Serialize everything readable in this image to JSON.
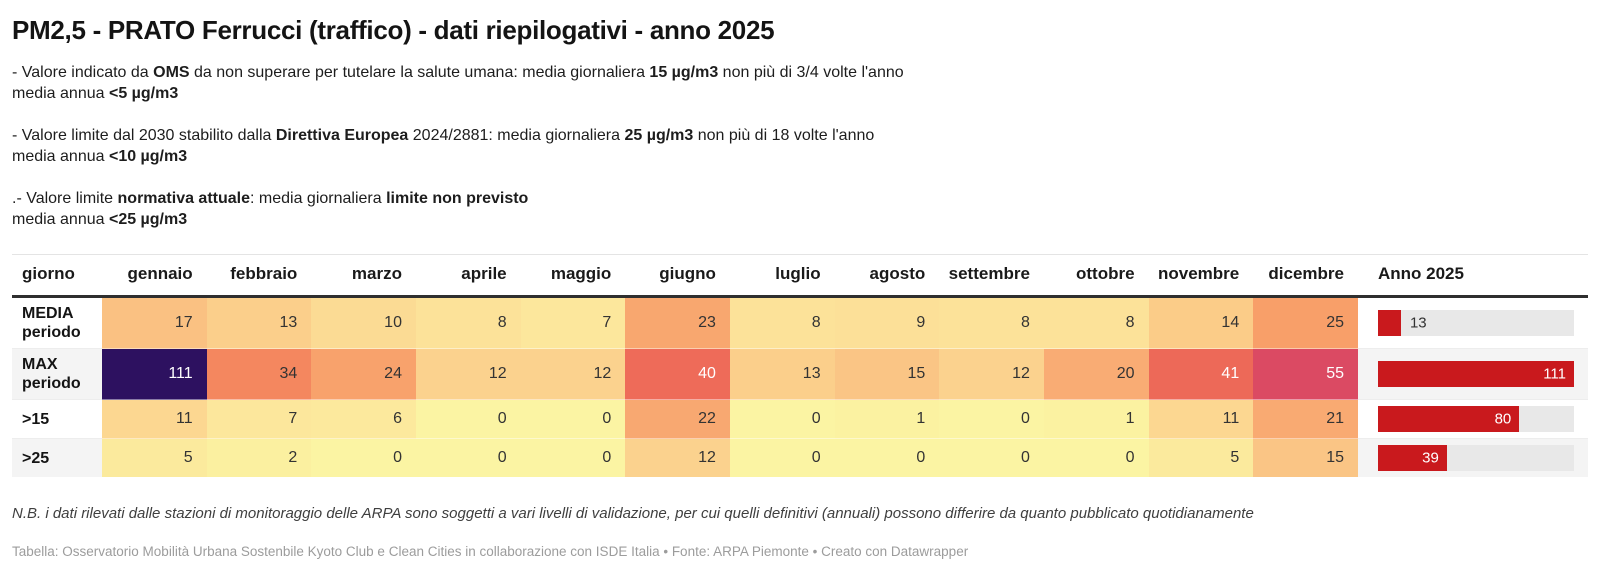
{
  "header": {
    "title": "PM2,5 - PRATO Ferrucci (traffico) - dati riepilogativi - anno 2025"
  },
  "description": [
    {
      "lines": [
        [
          [
            "- Valore indicato da ",
            0
          ],
          [
            "OMS",
            1
          ],
          [
            " da non superare per tutelare la salute umana: media giornaliera ",
            0
          ],
          [
            "15 µg/m3",
            1
          ],
          [
            " non più di 3/4 volte l'anno",
            0
          ]
        ],
        [
          [
            "media annua ",
            0
          ],
          [
            "<5 µg/m3",
            1
          ]
        ]
      ]
    },
    {
      "lines": [
        [
          [
            "- Valore limite dal 2030 stabilito dalla ",
            0
          ],
          [
            "Direttiva Europea",
            1
          ],
          [
            " 2024/2881: media giornaliera ",
            0
          ],
          [
            "25 µg/m3",
            1
          ],
          [
            " non più di 18 volte l'anno",
            0
          ]
        ],
        [
          [
            "media annua ",
            0
          ],
          [
            "<10 µg/m3",
            1
          ]
        ]
      ]
    },
    {
      "lines": [
        [
          [
            ".- Valore limite ",
            0
          ],
          [
            "normativa attuale",
            1
          ],
          [
            ": media giornaliera ",
            0
          ],
          [
            "limite non previsto",
            1
          ]
        ],
        [
          [
            "media annua ",
            0
          ],
          [
            "<25 µg/m3",
            1
          ]
        ]
      ]
    }
  ],
  "chart_data": {
    "type": "table",
    "title": "PM2,5 - PRATO Ferrucci (traffico) - dati riepilogativi - anno 2025",
    "columns": [
      "giorno",
      "gennaio",
      "febbraio",
      "marzo",
      "aprile",
      "maggio",
      "giugno",
      "luglio",
      "agosto",
      "settembre",
      "ottobre",
      "novembre",
      "dicembre",
      "Anno 2025"
    ],
    "rows": [
      {
        "label": "MEDIA periodo",
        "values": [
          17,
          13,
          10,
          8,
          7,
          23,
          8,
          9,
          8,
          8,
          14,
          25
        ],
        "anno_bar": 13
      },
      {
        "label": "MAX periodo",
        "values": [
          111,
          34,
          24,
          12,
          12,
          40,
          13,
          15,
          12,
          20,
          41,
          55
        ],
        "anno_bar": 111
      },
      {
        "label": ">15",
        "values": [
          11,
          7,
          6,
          0,
          0,
          22,
          0,
          1,
          0,
          1,
          11,
          21
        ],
        "anno_bar": 80
      },
      {
        "label": ">25",
        "values": [
          5,
          2,
          0,
          0,
          0,
          12,
          0,
          0,
          0,
          0,
          5,
          15
        ],
        "anno_bar": 39
      }
    ],
    "anno_bar_max": 111,
    "anno_bar_color": "#C9191D",
    "anno_bar_track_color": "#E8E8E8",
    "heatmap_style": "magma-reversed",
    "value_colors": {
      "0": "#FBF4A3",
      "1": "#FBF2A1",
      "2": "#FBF0A0",
      "5": "#FBEA9D",
      "6": "#FCE99D",
      "7": "#FCE79C",
      "8": "#FCE299",
      "9": "#FCE098",
      "10": "#FBDB94",
      "11": "#FCD791",
      "12": "#FBD28E",
      "13": "#FBCF8B",
      "14": "#FBCC88",
      "15": "#FAC585",
      "17": "#FAC182",
      "20": "#F9AC74",
      "21": "#F9AA72",
      "22": "#F8A871",
      "23": "#F8A76F",
      "24": "#F8A26C",
      "25": "#F89F69",
      "34": "#F4875F",
      "40": "#EE6B59",
      "41": "#ED6958",
      "55": "#DB4A63",
      "111": "#2D1160"
    },
    "white_text_values": [
      40,
      41,
      55,
      111
    ],
    "cell_text_color": "#333333"
  },
  "footer": {
    "note": "N.B. i dati rilevati dalle stazioni di monitoraggio delle ARPA sono soggetti a vari livelli di validazione, per cui quelli definitivi (annuali) possono differire da quanto pubblicato quotidianamente",
    "attribution": "Tabella: Osservatorio Mobilità Urbana Sostenbile Kyoto Club e Clean Cities in collaborazione con ISDE Italia • Fonte: ARPA Piemonte • Creato con Datawrapper"
  }
}
